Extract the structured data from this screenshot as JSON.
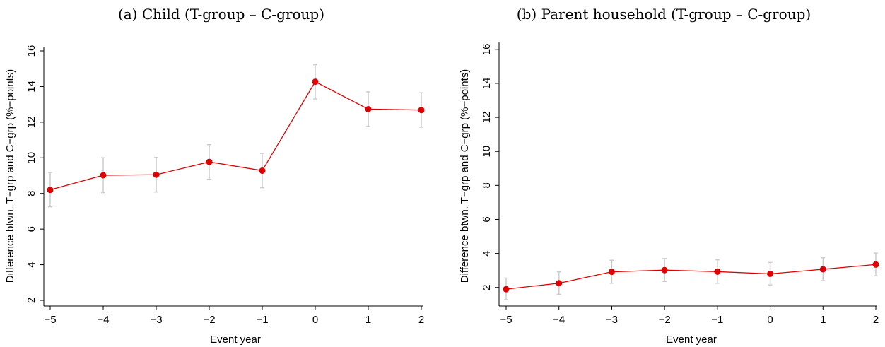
{
  "chart_data": [
    {
      "type": "line",
      "title": "(a) Child (T-group – C-group)",
      "xlabel": "Event year",
      "ylabel": "Difference btwn. T−grp and C−grp (%−points)",
      "x": [
        -5,
        -4,
        -3,
        -2,
        -1,
        0,
        1,
        2
      ],
      "x_tick_labels": [
        "−5",
        "−4",
        "−3",
        "−2",
        "−1",
        "0",
        "1",
        "2"
      ],
      "y_ticks": [
        2,
        4,
        6,
        8,
        10,
        12,
        14,
        16
      ],
      "ylim": [
        2,
        16
      ],
      "series": [
        {
          "values": [
            8.2,
            9.02,
            9.05,
            9.77,
            9.28,
            14.27,
            12.73,
            12.68
          ],
          "ci_low": [
            7.25,
            8.05,
            8.08,
            8.8,
            8.32,
            13.3,
            11.77,
            11.72
          ],
          "ci_high": [
            9.18,
            10.0,
            10.02,
            10.73,
            10.25,
            15.22,
            13.7,
            13.65
          ],
          "color": "#e00000",
          "ci_color": "#cccccc"
        }
      ],
      "grid": false,
      "legend": "none"
    },
    {
      "type": "line",
      "title": "(b) Parent household (T-group – C-group)",
      "xlabel": "Event year",
      "ylabel": "Difference btwn. T−grp and C−grp (%−points)",
      "x": [
        -5,
        -4,
        -3,
        -2,
        -1,
        0,
        1,
        2
      ],
      "x_tick_labels": [
        "−5",
        "−4",
        "−3",
        "−2",
        "−1",
        "0",
        "1",
        "2"
      ],
      "y_ticks": [
        2,
        4,
        6,
        8,
        10,
        12,
        14,
        16
      ],
      "ylim": [
        1.2,
        16.2
      ],
      "series": [
        {
          "values": [
            1.9,
            2.25,
            2.92,
            3.02,
            2.93,
            2.8,
            3.07,
            3.35
          ],
          "ci_low": [
            1.28,
            1.6,
            2.25,
            2.35,
            2.25,
            2.15,
            2.4,
            2.68
          ],
          "ci_high": [
            2.55,
            2.92,
            3.6,
            3.7,
            3.62,
            3.47,
            3.75,
            4.02
          ],
          "color": "#e00000",
          "ci_color": "#cccccc"
        }
      ],
      "grid": false,
      "legend": "none"
    }
  ]
}
